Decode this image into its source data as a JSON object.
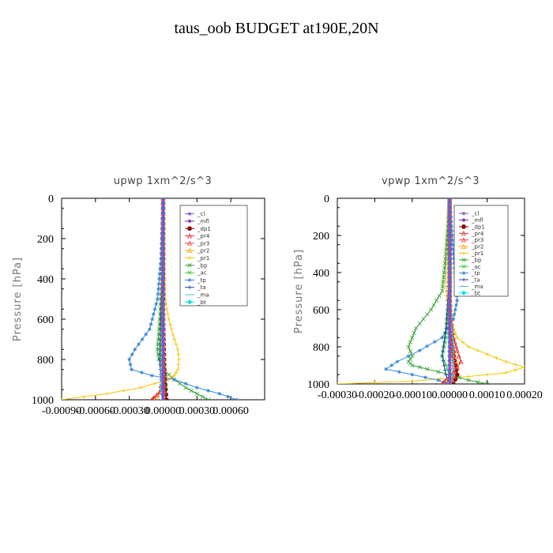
{
  "title": "taus_oob  BUDGET at190E,20N",
  "chart_data": [
    {
      "type": "line",
      "title": "upwp   1xm^2/s^3",
      "ylabel": "Pressure  [hPa]",
      "xlim": [
        -0.0009,
        0.0009
      ],
      "xticks": [
        -0.0009,
        -0.0006,
        -0.0003,
        0.0,
        0.0003,
        0.0006
      ],
      "xtick_labels": [
        "-0.00090",
        "-0.00060",
        "-0.00030",
        "0.00000",
        "0.00030",
        "0.00060"
      ],
      "ylim": [
        1000,
        0
      ],
      "yticks": [
        0,
        200,
        400,
        600,
        800,
        1000
      ],
      "ytick_labels": [
        "0",
        "200",
        "400",
        "600",
        "800",
        "1000"
      ],
      "legend": [
        "_cl",
        "_mfl",
        "_dp1",
        "_pr4",
        "_pr3",
        "_pr2",
        "_pr1",
        "_bp",
        "_ac",
        "_tp",
        "_ta",
        "_ma",
        "_bt"
      ],
      "series": [
        {
          "name": "_pr1",
          "color": "#f5c400",
          "x": [
            0,
            1e-05,
            2e-05,
            5e-05,
            0.0001,
            0.00013,
            0.00014,
            0.00013,
            0.0001,
            5e-05,
            -0.0002,
            -0.0005,
            -0.0009
          ],
          "y": [
            0,
            300,
            500,
            600,
            700,
            750,
            800,
            850,
            880,
            900,
            940,
            970,
            1000
          ]
        },
        {
          "name": "_pr2",
          "color": "#ffa500",
          "x": [
            0,
            0,
            0,
            1e-05,
            2e-05,
            1e-05,
            0,
            -5e-05,
            -0.0001
          ],
          "y": [
            0,
            400,
            600,
            800,
            880,
            920,
            950,
            980,
            1000
          ]
        },
        {
          "name": "_bp",
          "color": "#2ca02c",
          "x": [
            0,
            -1e-05,
            -3e-05,
            -5e-05,
            -4e-05,
            0,
            0.0001,
            0.0002,
            0.0003,
            0.0004
          ],
          "y": [
            0,
            400,
            600,
            750,
            800,
            850,
            900,
            940,
            970,
            1000
          ]
        },
        {
          "name": "_ac",
          "color": "#33cc33",
          "x": [
            0,
            0,
            -1e-05,
            -2e-05,
            -1e-05,
            1e-05,
            3e-05,
            2e-05
          ],
          "y": [
            0,
            400,
            600,
            780,
            820,
            880,
            940,
            1000
          ]
        },
        {
          "name": "_tp",
          "color": "#3b88d8",
          "x": [
            0,
            -2e-05,
            -5e-05,
            -0.00012,
            -0.00025,
            -0.0003,
            -0.00028,
            -0.0001,
            0.0001,
            0.0003,
            0.0005,
            0.00065
          ],
          "y": [
            0,
            300,
            500,
            650,
            750,
            800,
            850,
            880,
            900,
            940,
            970,
            1000
          ]
        },
        {
          "name": "_ta",
          "color": "#1a3fa0",
          "x": [
            0,
            -1e-05,
            -2e-05,
            -3e-05,
            -2e-05,
            0
          ],
          "y": [
            0,
            400,
            600,
            800,
            900,
            1000
          ]
        },
        {
          "name": "_dp1",
          "color": "#8b0a0a",
          "x": [
            0,
            0,
            1e-05,
            2e-05,
            3e-05
          ],
          "y": [
            0,
            600,
            850,
            950,
            1000
          ]
        },
        {
          "name": "_pr4",
          "color": "#e0303a",
          "x": [
            0,
            0,
            -1e-05,
            -3e-05,
            -8e-05,
            -0.0001
          ],
          "y": [
            0,
            700,
            900,
            960,
            990,
            1000
          ]
        },
        {
          "name": "_pr3",
          "color": "#ff4040",
          "x": [
            0,
            0,
            1e-05,
            1e-05,
            0
          ],
          "y": [
            0,
            700,
            900,
            960,
            1000
          ]
        },
        {
          "name": "_ma",
          "color": "#55bbee",
          "x": [
            0,
            0,
            -1e-05,
            -2e-05,
            -1e-05
          ],
          "y": [
            0,
            600,
            800,
            950,
            1000
          ]
        },
        {
          "name": "_bt",
          "color": "#00e5e5",
          "x": [
            0,
            0,
            0,
            0
          ],
          "y": [
            0,
            500,
            900,
            1000
          ]
        },
        {
          "name": "_mfl",
          "color": "#7b1fa2",
          "x": [
            0,
            0,
            0,
            0,
            0
          ],
          "y": [
            0,
            250,
            500,
            750,
            1000
          ]
        },
        {
          "name": "_cl",
          "color": "#7e57c2",
          "x": [
            0,
            0,
            0,
            0,
            0
          ],
          "y": [
            0,
            250,
            500,
            750,
            1000
          ]
        }
      ]
    },
    {
      "type": "line",
      "title": "vpwp   1xm^2/s^3",
      "ylabel": "Pressure  [hPa]",
      "xlim": [
        -0.0003,
        0.0002
      ],
      "xticks": [
        -0.0003,
        -0.0002,
        -0.0001,
        0.0,
        0.0001,
        0.0002
      ],
      "xtick_labels": [
        "-0.00030",
        "-0.00020",
        "-0.00010",
        "0.00000",
        "0.00010",
        "0.00020"
      ],
      "ylim": [
        1000,
        0
      ],
      "yticks": [
        0,
        200,
        400,
        600,
        800,
        1000
      ],
      "ytick_labels": [
        "0",
        "200",
        "400",
        "600",
        "800",
        "1000"
      ],
      "legend": [
        "_cl",
        "_mfl",
        "_dp1",
        "_pr4",
        "_pr3",
        "_pr2",
        "_pr1",
        "_bp",
        "_ac",
        "_tp",
        "_ta",
        "_ma",
        "_bt"
      ],
      "series": [
        {
          "name": "_pr1",
          "color": "#f5c400",
          "x": [
            0,
            -1e-05,
            -1e-05,
            0,
            2e-05,
            5e-05,
            0.0001,
            0.00015,
            0.0002,
            0.00015,
            5e-05,
            -0.0001,
            -0.0003
          ],
          "y": [
            0,
            300,
            500,
            650,
            750,
            800,
            840,
            880,
            910,
            940,
            960,
            985,
            1000
          ]
        },
        {
          "name": "_pr2",
          "color": "#ffa500",
          "x": [
            0,
            0,
            1e-05,
            2e-05,
            1e-05,
            0
          ],
          "y": [
            0,
            500,
            800,
            900,
            960,
            1000
          ]
        },
        {
          "name": "_bp",
          "color": "#2ca02c",
          "x": [
            0,
            -1e-05,
            -2e-05,
            -5e-05,
            -9e-05,
            -0.00011,
            -0.0001,
            -0.00011,
            -0.0001,
            -6e-05,
            0,
            5e-05,
            0.0001
          ],
          "y": [
            0,
            300,
            500,
            600,
            700,
            800,
            850,
            880,
            900,
            920,
            950,
            980,
            1000
          ]
        },
        {
          "name": "_ac",
          "color": "#33cc33",
          "x": [
            0,
            0,
            -1e-05,
            -2e-05,
            0,
            1e-05
          ],
          "y": [
            0,
            500,
            750,
            850,
            950,
            1000
          ]
        },
        {
          "name": "_tp",
          "color": "#3b88d8",
          "x": [
            0,
            1e-05,
            2e-05,
            1e-05,
            -2e-05,
            -8e-05,
            -0.00014,
            -0.00017,
            -0.0001,
            -3e-05,
            0
          ],
          "y": [
            0,
            300,
            550,
            650,
            750,
            820,
            880,
            920,
            950,
            980,
            1000
          ]
        },
        {
          "name": "_ta",
          "color": "#1a3fa0",
          "x": [
            0,
            0,
            -1e-05,
            -2e-05,
            -1e-05,
            0
          ],
          "y": [
            0,
            400,
            700,
            850,
            950,
            1000
          ]
        },
        {
          "name": "_dp1",
          "color": "#8b0a0a",
          "x": [
            0,
            0,
            1e-05,
            2e-05,
            1e-05
          ],
          "y": [
            0,
            700,
            850,
            950,
            1000
          ]
        },
        {
          "name": "_pr4",
          "color": "#e0303a",
          "x": [
            0,
            0,
            1e-05,
            2e-05,
            3e-05,
            1e-05,
            -1e-05,
            -2e-05
          ],
          "y": [
            0,
            600,
            750,
            820,
            880,
            940,
            980,
            1000
          ]
        },
        {
          "name": "_pr3",
          "color": "#ff4040",
          "x": [
            0,
            0,
            1e-05,
            1e-05,
            0
          ],
          "y": [
            0,
            700,
            880,
            960,
            1000
          ]
        },
        {
          "name": "_ma",
          "color": "#55bbee",
          "x": [
            0,
            0,
            1e-05,
            1e-05,
            0
          ],
          "y": [
            0,
            600,
            800,
            950,
            1000
          ]
        },
        {
          "name": "_bt",
          "color": "#00e5e5",
          "x": [
            0,
            0,
            0,
            0
          ],
          "y": [
            0,
            500,
            900,
            1000
          ]
        },
        {
          "name": "_mfl",
          "color": "#7b1fa2",
          "x": [
            0,
            0,
            0,
            0,
            0
          ],
          "y": [
            0,
            250,
            500,
            750,
            1000
          ]
        },
        {
          "name": "_cl",
          "color": "#7e57c2",
          "x": [
            0,
            0,
            0,
            0,
            0
          ],
          "y": [
            0,
            250,
            500,
            750,
            1000
          ]
        }
      ]
    }
  ]
}
